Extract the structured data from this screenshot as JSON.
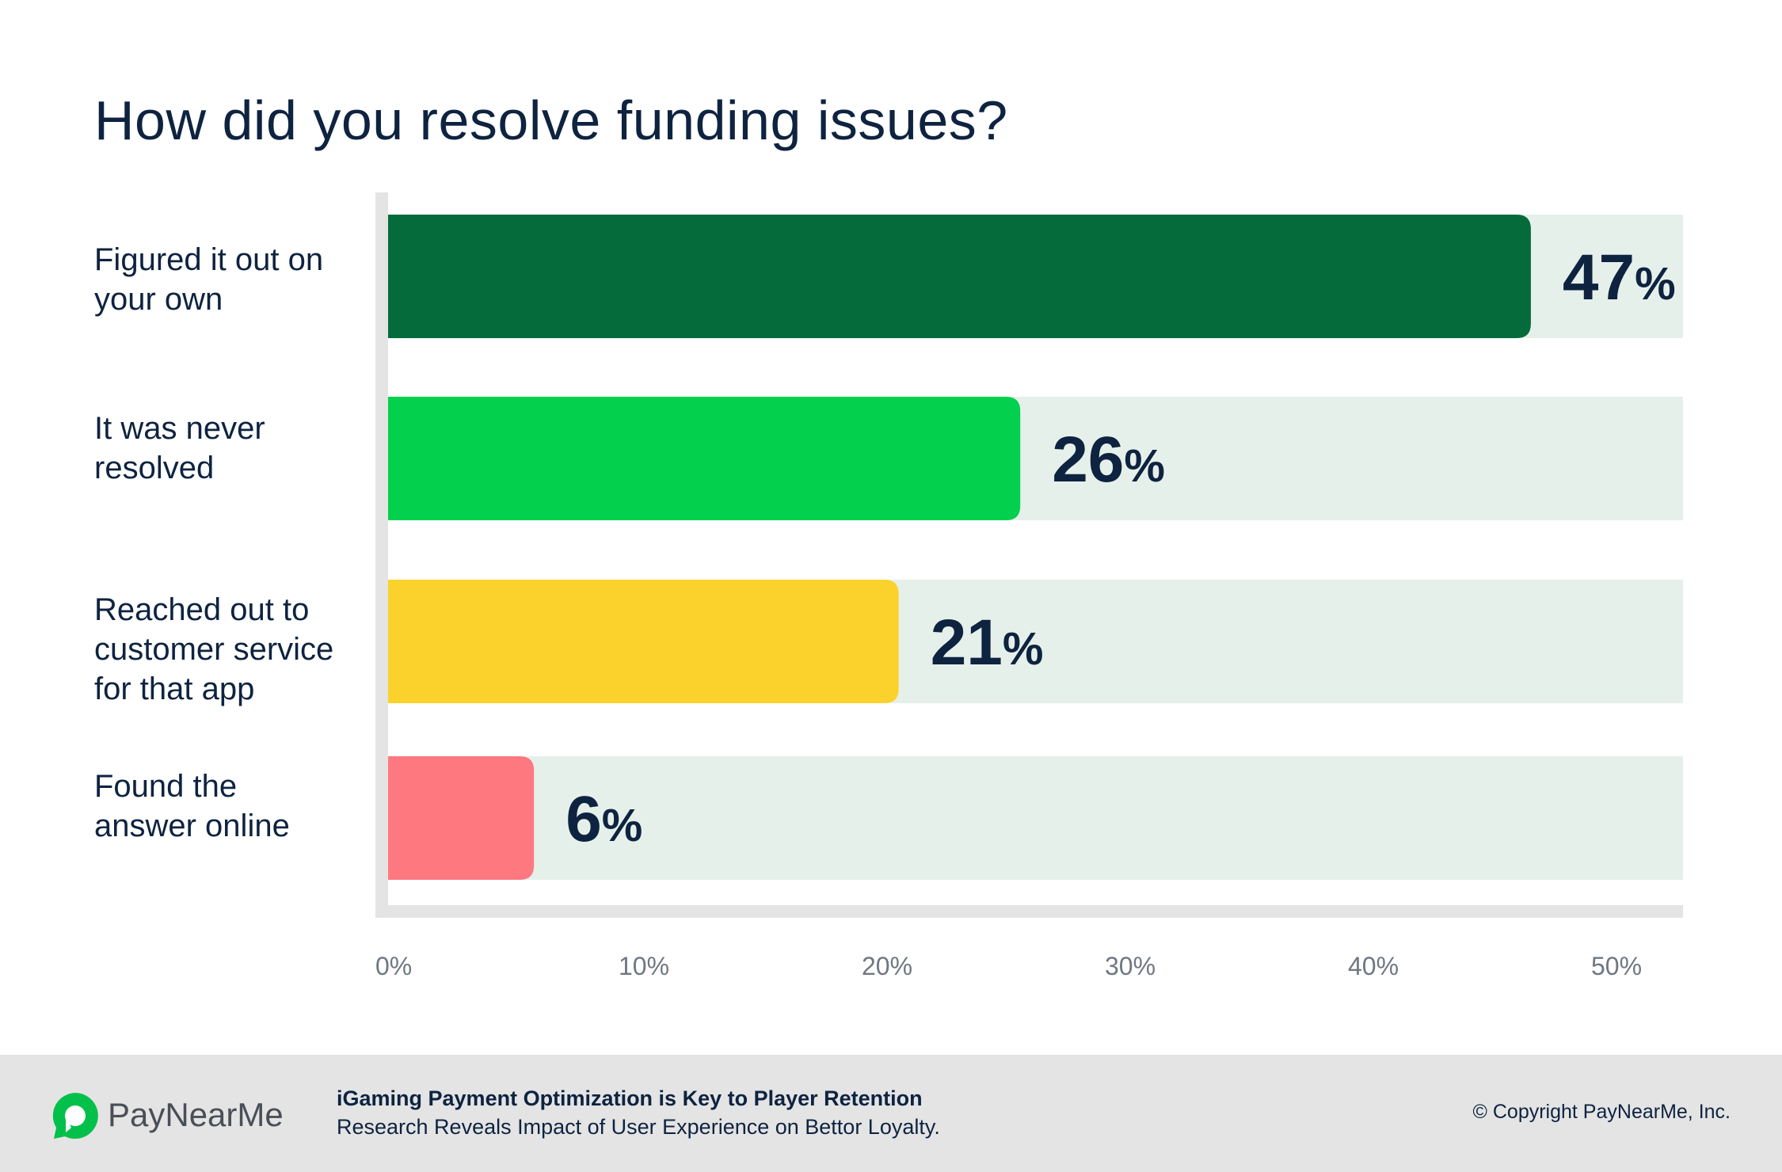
{
  "title": "How did you resolve funding issues?",
  "chart_data": {
    "type": "bar",
    "orientation": "horizontal",
    "title": "How did you resolve funding issues?",
    "categories": [
      [
        "Figured it out on",
        "your own"
      ],
      [
        "It was never",
        "resolved"
      ],
      [
        "Reached out to",
        "customer service",
        "for that app"
      ],
      [
        "Found the",
        "answer online"
      ]
    ],
    "values": [
      47,
      26,
      21,
      6
    ],
    "value_labels": [
      "47",
      "26",
      "21",
      "6"
    ],
    "value_suffix": "%",
    "xlim": [
      0,
      55
    ],
    "xticks": [
      "0%",
      "10%",
      "20%",
      "30%",
      "40%",
      "50%"
    ],
    "xtick_values": [
      0,
      10,
      20,
      30,
      40,
      50
    ],
    "colors": [
      "#056b3a",
      "#03d04d",
      "#fbd22b",
      "#fe7880"
    ],
    "track_color": "#e6f0ea",
    "grid": false
  },
  "footer": {
    "brand": "PayNearMe",
    "report_title": "iGaming Payment Optimization is Key to Player Retention",
    "report_subtitle": "Research Reveals Impact of User Experience on Bettor Loyalty.",
    "copyright": "© Copyright PayNearMe, Inc.",
    "logo_color": "#03c04a"
  }
}
